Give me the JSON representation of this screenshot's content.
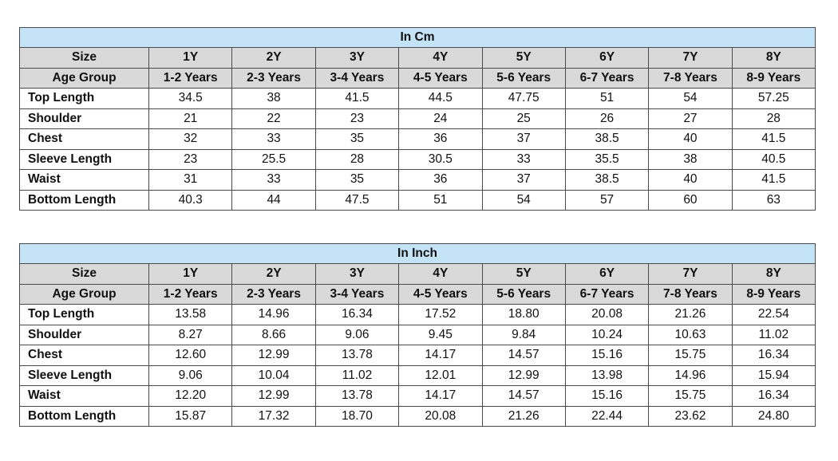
{
  "tables": [
    {
      "title": "In Cm",
      "size_row": [
        "Size",
        "1Y",
        "2Y",
        "3Y",
        "4Y",
        "5Y",
        "6Y",
        "7Y",
        "8Y"
      ],
      "age_row": [
        "Age Group",
        "1-2 Years",
        "2-3 Years",
        "3-4 Years",
        "4-5 Years",
        "5-6 Years",
        "6-7 Years",
        "7-8 Years",
        "8-9 Years"
      ],
      "rows": [
        [
          "Top Length",
          "34.5",
          "38",
          "41.5",
          "44.5",
          "47.75",
          "51",
          "54",
          "57.25"
        ],
        [
          "Shoulder",
          "21",
          "22",
          "23",
          "24",
          "25",
          "26",
          "27",
          "28"
        ],
        [
          "Chest",
          "32",
          "33",
          "35",
          "36",
          "37",
          "38.5",
          "40",
          "41.5"
        ],
        [
          "Sleeve Length",
          "23",
          "25.5",
          "28",
          "30.5",
          "33",
          "35.5",
          "38",
          "40.5"
        ],
        [
          "Waist",
          "31",
          "33",
          "35",
          "36",
          "37",
          "38.5",
          "40",
          "41.5"
        ],
        [
          "Bottom Length",
          "40.3",
          "44",
          "47.5",
          "51",
          "54",
          "57",
          "60",
          "63"
        ]
      ]
    },
    {
      "title": "In Inch",
      "size_row": [
        "Size",
        "1Y",
        "2Y",
        "3Y",
        "4Y",
        "5Y",
        "6Y",
        "7Y",
        "8Y"
      ],
      "age_row": [
        "Age Group",
        "1-2 Years",
        "2-3 Years",
        "3-4 Years",
        "4-5 Years",
        "5-6 Years",
        "6-7 Years",
        "7-8 Years",
        "8-9 Years"
      ],
      "rows": [
        [
          "Top Length",
          "13.58",
          "14.96",
          "16.34",
          "17.52",
          "18.80",
          "20.08",
          "21.26",
          "22.54"
        ],
        [
          "Shoulder",
          "8.27",
          "8.66",
          "9.06",
          "9.45",
          "9.84",
          "10.24",
          "10.63",
          "11.02"
        ],
        [
          "Chest",
          "12.60",
          "12.99",
          "13.78",
          "14.17",
          "14.57",
          "15.16",
          "15.75",
          "16.34"
        ],
        [
          "Sleeve Length",
          "9.06",
          "10.04",
          "11.02",
          "12.01",
          "12.99",
          "13.98",
          "14.96",
          "15.94"
        ],
        [
          "Waist",
          "12.20",
          "12.99",
          "13.78",
          "14.17",
          "14.57",
          "15.16",
          "15.75",
          "16.34"
        ],
        [
          "Bottom Length",
          "15.87",
          "17.32",
          "18.70",
          "20.08",
          "21.26",
          "22.44",
          "23.62",
          "24.80"
        ]
      ]
    }
  ],
  "colors": {
    "title_bg": "#c5e3f6",
    "header_bg": "#d9d9d9",
    "border": "#4a4a4a"
  }
}
